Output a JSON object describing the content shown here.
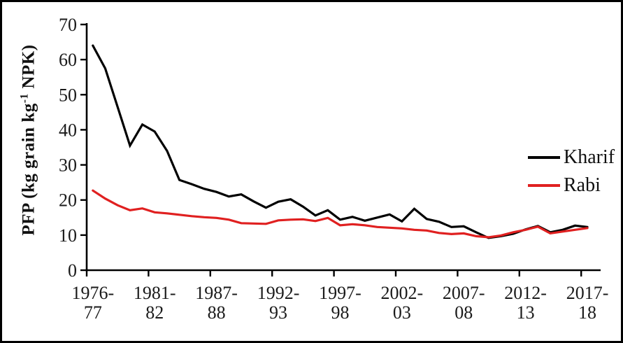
{
  "figure": {
    "background": "#ffffff",
    "border_color": "#000000"
  },
  "y_axis": {
    "title_prefix": "PFP (kg grain kg",
    "title_superscript": "-1",
    "title_suffix": " NPK)"
  },
  "chart_data": {
    "type": "line",
    "title": "",
    "xlabel": "",
    "ylabel": "PFP (kg grain kg-1 NPK)",
    "ylim": [
      0,
      70
    ],
    "y_ticks": [
      0,
      10,
      20,
      30,
      40,
      50,
      60,
      70
    ],
    "x_tick_labels": [
      "1976-77",
      "1981-82",
      "1987-88",
      "1992-93",
      "1997-98",
      "2002-03",
      "2007-08",
      "2012-13",
      "2017-18"
    ],
    "grid": false,
    "legend_position": "right",
    "categories": [
      "1976-77",
      "1977-78",
      "1978-79",
      "1979-80",
      "1980-81",
      "1981-82",
      "1982-83",
      "1983-84",
      "1984-85",
      "1985-86",
      "1987-88",
      "1988-89",
      "1989-90",
      "1990-91",
      "1991-92",
      "1992-93",
      "1993-94",
      "1994-95",
      "1995-96",
      "1996-97",
      "1997-98",
      "1998-99",
      "1999-00",
      "2000-01",
      "2001-02",
      "2002-03",
      "2003-04",
      "2004-05",
      "2005-06",
      "2006-07",
      "2007-08",
      "2008-09",
      "2009-10",
      "2010-11",
      "2011-12",
      "2012-13",
      "2013-14",
      "2014-15",
      "2015-16",
      "2016-17",
      "2017-18"
    ],
    "series": [
      {
        "name": "Kharif",
        "color": "#000000",
        "values": [
          64,
          57.5,
          46.5,
          35.5,
          41.5,
          39.5,
          34,
          25.7,
          24.5,
          23.2,
          22.3,
          21,
          21.6,
          19.6,
          17.8,
          19.5,
          20.2,
          18.1,
          15.6,
          17.1,
          14.4,
          15.2,
          14.1,
          15,
          15.9,
          13.9,
          17.5,
          14.6,
          13.8,
          12.3,
          12.5,
          10.8,
          9.2,
          9.7,
          10.4,
          11.6,
          12.6,
          10.8,
          11.5,
          12.7,
          12.3
        ]
      },
      {
        "name": "Rabi",
        "color": "#e02020",
        "values": [
          22.7,
          20.4,
          18.5,
          17.1,
          17.6,
          16.5,
          16.2,
          15.8,
          15.4,
          15.1,
          14.9,
          14.4,
          13.4,
          13.3,
          13.2,
          14.2,
          14.4,
          14.5,
          14,
          14.9,
          12.8,
          13.1,
          12.8,
          12.3,
          12.1,
          11.9,
          11.5,
          11.3,
          10.6,
          10.3,
          10.5,
          9.7,
          9.4,
          9.9,
          10.8,
          11.5,
          12.4,
          10.5,
          11,
          11.5,
          12
        ]
      }
    ]
  }
}
